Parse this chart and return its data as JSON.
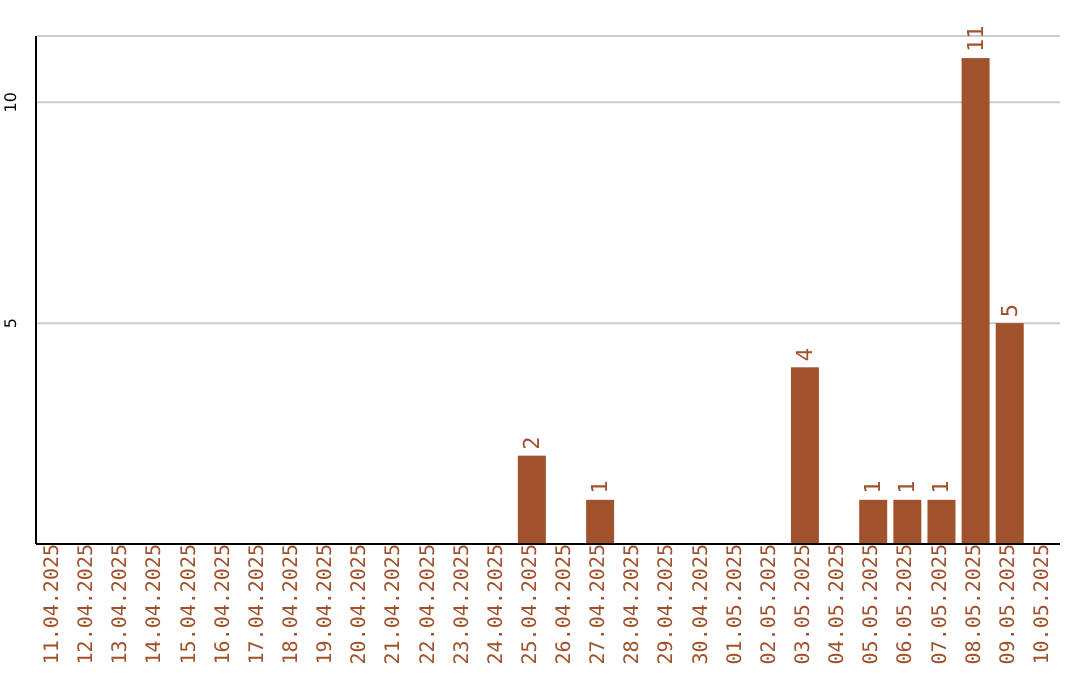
{
  "chart_data": {
    "type": "bar",
    "categories": [
      "11.04.2025",
      "12.04.2025",
      "13.04.2025",
      "14.04.2025",
      "15.04.2025",
      "16.04.2025",
      "17.04.2025",
      "18.04.2025",
      "19.04.2025",
      "20.04.2025",
      "21.04.2025",
      "22.04.2025",
      "23.04.2025",
      "24.04.2025",
      "25.04.2025",
      "26.04.2025",
      "27.04.2025",
      "28.04.2025",
      "29.04.2025",
      "30.04.2025",
      "01.05.2025",
      "02.05.2025",
      "03.05.2025",
      "04.05.2025",
      "05.05.2025",
      "06.05.2025",
      "07.05.2025",
      "08.05.2025",
      "09.05.2025",
      "10.05.2025"
    ],
    "values": [
      0,
      0,
      0,
      0,
      0,
      0,
      0,
      0,
      0,
      0,
      0,
      0,
      0,
      0,
      2,
      0,
      1,
      0,
      0,
      0,
      0,
      0,
      4,
      0,
      1,
      1,
      1,
      11,
      5,
      0
    ],
    "value_labels": [
      null,
      null,
      null,
      null,
      null,
      null,
      null,
      null,
      null,
      null,
      null,
      null,
      null,
      null,
      "2",
      null,
      "1",
      null,
      null,
      null,
      null,
      null,
      "4",
      null,
      "1",
      "1",
      "1",
      "11",
      "5",
      null
    ],
    "color": "#a0522d",
    "ylim": [
      0,
      11.5
    ],
    "yticks": [
      5,
      10
    ],
    "grid": "y"
  }
}
